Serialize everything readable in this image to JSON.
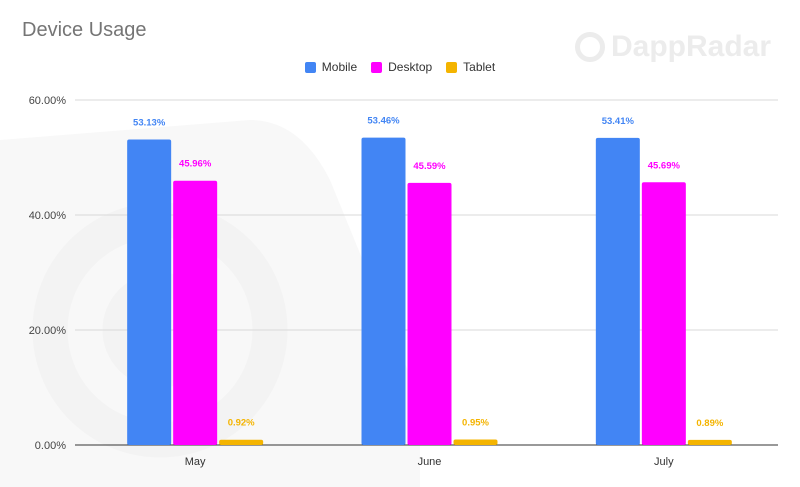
{
  "chart_data": {
    "type": "bar",
    "title": "Device Usage",
    "categories": [
      "May",
      "June",
      "July"
    ],
    "series": [
      {
        "name": "Mobile",
        "color": "#4285f4",
        "values": [
          53.13,
          53.46,
          53.41
        ],
        "labels": [
          "53.13%",
          "53.46%",
          "53.41%"
        ]
      },
      {
        "name": "Desktop",
        "color": "#ff00ff",
        "values": [
          45.96,
          45.59,
          45.69
        ],
        "labels": [
          "45.96%",
          "45.59%",
          "45.69%"
        ]
      },
      {
        "name": "Tablet",
        "color": "#f4b400",
        "values": [
          0.92,
          0.95,
          0.89
        ],
        "labels": [
          "0.92%",
          "0.95%",
          "0.89%"
        ]
      }
    ],
    "ylim": [
      0,
      60
    ],
    "yticks": [
      "0.00%",
      "20.00%",
      "40.00%",
      "60.00%"
    ],
    "grid": true,
    "legend": "top-center",
    "xlabel": "",
    "ylabel": ""
  },
  "watermark": "DappRadar"
}
